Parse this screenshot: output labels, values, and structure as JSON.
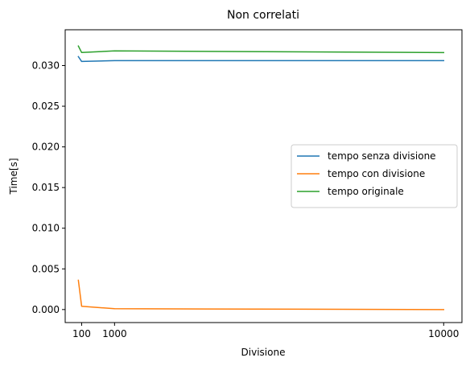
{
  "chart_data": {
    "type": "line",
    "title": "Non correlati",
    "xlabel": "Divisione",
    "ylabel": "Time[s]",
    "xlim": [
      -350,
      10500
    ],
    "ylim": [
      -0.0016,
      0.0344
    ],
    "xticks": [
      100,
      1000,
      10000
    ],
    "xtick_labels": [
      "100",
      "1000",
      "10000"
    ],
    "yticks": [
      0.0,
      0.005,
      0.01,
      0.015,
      0.02,
      0.025,
      0.03
    ],
    "ytick_labels": [
      "0.000",
      "0.005",
      "0.010",
      "0.015",
      "0.020",
      "0.025",
      "0.030"
    ],
    "grid": false,
    "legend_position": "center-right",
    "x": [
      10,
      100,
      1000,
      10000
    ],
    "series": [
      {
        "name": "tempo senza divisione",
        "color": "#1f77b4",
        "values": [
          0.0311,
          0.0305,
          0.0306,
          0.0306
        ]
      },
      {
        "name": "tempo con divisione",
        "color": "#ff7f0e",
        "values": [
          0.0036,
          0.0004,
          0.0001,
          0.0
        ]
      },
      {
        "name": "tempo originale",
        "color": "#2ca02c",
        "values": [
          0.0324,
          0.0316,
          0.0318,
          0.0316
        ]
      }
    ]
  }
}
